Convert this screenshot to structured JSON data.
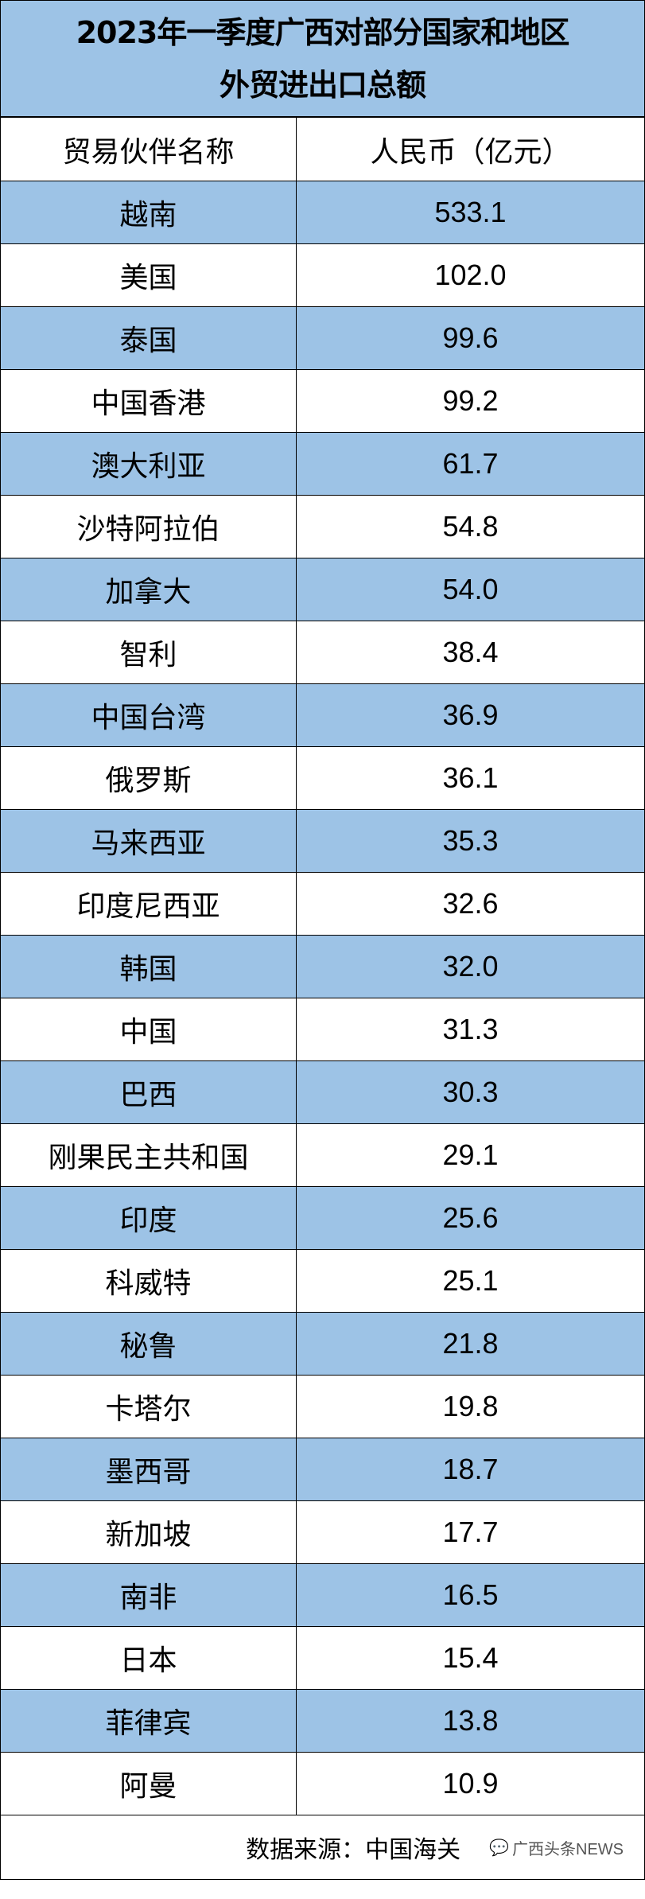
{
  "title": {
    "line1": "2023年一季度广西对部分国家和地区",
    "line2": "外贸进出口总额"
  },
  "header": {
    "partner": "贸易伙伴名称",
    "value": "人民币（亿元）"
  },
  "rows": [
    {
      "name": "越南",
      "value": "533.1"
    },
    {
      "name": "美国",
      "value": "102.0"
    },
    {
      "name": "泰国",
      "value": "99.6"
    },
    {
      "name": "中国香港",
      "value": "99.2"
    },
    {
      "name": "澳大利亚",
      "value": "61.7"
    },
    {
      "name": "沙特阿拉伯",
      "value": "54.8"
    },
    {
      "name": "加拿大",
      "value": "54.0"
    },
    {
      "name": "智利",
      "value": "38.4"
    },
    {
      "name": "中国台湾",
      "value": "36.9"
    },
    {
      "name": "俄罗斯",
      "value": "36.1"
    },
    {
      "name": "马来西亚",
      "value": "35.3"
    },
    {
      "name": "印度尼西亚",
      "value": "32.6"
    },
    {
      "name": "韩国",
      "value": "32.0"
    },
    {
      "name": "中国",
      "value": "31.3"
    },
    {
      "name": "巴西",
      "value": "30.3"
    },
    {
      "name": "刚果民主共和国",
      "value": "29.1"
    },
    {
      "name": "印度",
      "value": "25.6"
    },
    {
      "name": "科威特",
      "value": "25.1"
    },
    {
      "name": "秘鲁",
      "value": "21.8"
    },
    {
      "name": "卡塔尔",
      "value": "19.8"
    },
    {
      "name": "墨西哥",
      "value": "18.7"
    },
    {
      "name": "新加坡",
      "value": "17.7"
    },
    {
      "name": "南非",
      "value": "16.5"
    },
    {
      "name": "日本",
      "value": "15.4"
    },
    {
      "name": "菲律宾",
      "value": "13.8"
    },
    {
      "name": "阿曼",
      "value": "10.9"
    }
  ],
  "footer": {
    "source": "数据来源：中国海关",
    "watermark": "广西头条NEWS",
    "watermark_icon": "wechat-icon"
  },
  "colors": {
    "stripe": "#9DC3E6"
  }
}
